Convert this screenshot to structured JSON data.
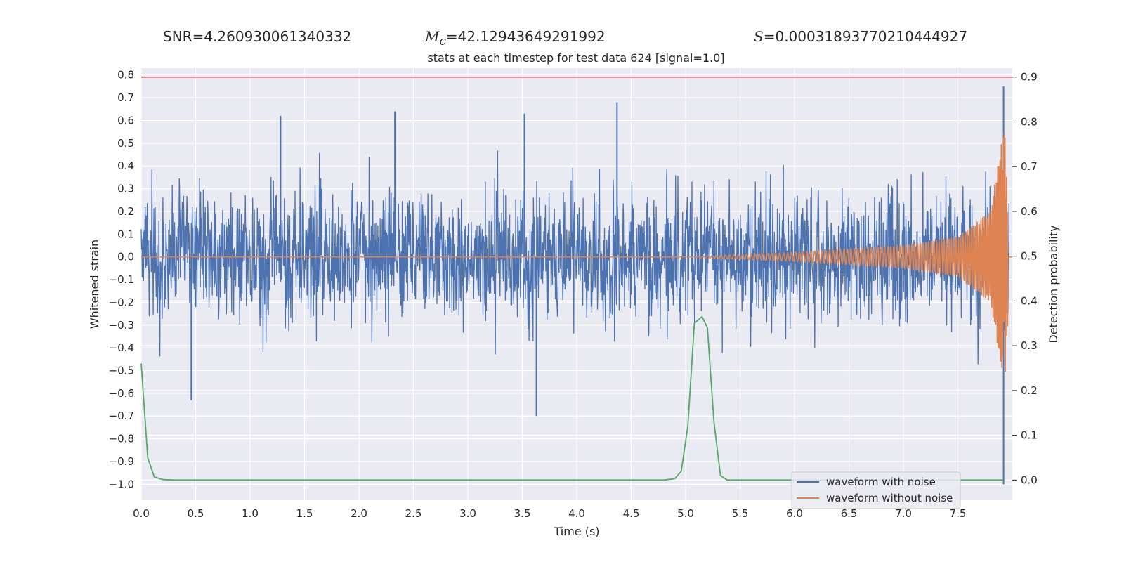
{
  "stats": {
    "snr_label": "SNR",
    "snr_value": "4.260930061340332",
    "mc_symbol": "M",
    "mc_subscript": "c",
    "mc_value": "42.12943649291992",
    "s_symbol": "S",
    "s_value": "0.00031893770210444927"
  },
  "chart_data": {
    "type": "line",
    "title": "stats at each timestep for test data 624 [signal=1.0]",
    "xlabel": "Time (s)",
    "ylabel": "Whitened strain",
    "y2label": "Detection probability",
    "xlim": [
      0.0,
      8.0
    ],
    "ylim": [
      -1.07,
      0.83
    ],
    "y2lim": [
      -0.045,
      0.92
    ],
    "xticks": [
      "0.0",
      "0.5",
      "1.0",
      "1.5",
      "2.0",
      "2.5",
      "3.0",
      "3.5",
      "4.0",
      "4.5",
      "5.0",
      "5.5",
      "6.0",
      "6.5",
      "7.0",
      "7.5"
    ],
    "yticks": [
      "0.8",
      "0.7",
      "0.6",
      "0.5",
      "0.4",
      "0.3",
      "0.2",
      "0.1",
      "0.0",
      "−0.1",
      "−0.2",
      "−0.3",
      "−0.4",
      "−0.5",
      "−0.6",
      "−0.7",
      "−0.8",
      "−0.9",
      "−1.0"
    ],
    "y2ticks": [
      "0.9",
      "0.8",
      "0.7",
      "0.6",
      "0.5",
      "0.4",
      "0.3",
      "0.2",
      "0.1",
      "0.0"
    ],
    "grid": true,
    "legend_position": "lower-right",
    "colors": {
      "noisy": "#4c72b0",
      "clean": "#dd8452",
      "probability": "#55a868",
      "threshold": "#c44e52",
      "background": "#eaeaf2",
      "grid": "#ffffff"
    },
    "threshold": 0.9,
    "series": [
      {
        "name": "waveform with noise",
        "description": "whitened noisy strain fluctuating roughly between -0.5 and 0.5 with spikes; notable extremes",
        "extremes": [
          [
            0.46,
            -0.63
          ],
          [
            1.28,
            0.62
          ],
          [
            2.33,
            0.64
          ],
          [
            3.52,
            0.63
          ],
          [
            3.63,
            -0.7
          ],
          [
            4.37,
            0.68
          ],
          [
            7.92,
            0.75
          ],
          [
            7.92,
            -1.0
          ]
        ]
      },
      {
        "name": "waveform without noise",
        "description": "chirp signal growing in amplitude toward merger",
        "points": [
          [
            0.0,
            0.0
          ],
          [
            5.0,
            0.0
          ],
          [
            6.0,
            0.02
          ],
          [
            7.0,
            0.05
          ],
          [
            7.5,
            0.09
          ],
          [
            7.8,
            0.2
          ],
          [
            7.9,
            0.5
          ],
          [
            7.93,
            0.55
          ],
          [
            7.95,
            -0.57
          ],
          [
            7.97,
            0.0
          ],
          [
            8.0,
            0.0
          ]
        ]
      },
      {
        "name": "",
        "axis": "secondary",
        "points": [
          [
            0.0,
            0.26
          ],
          [
            0.06,
            0.05
          ],
          [
            0.12,
            0.007
          ],
          [
            0.2,
            0.001
          ],
          [
            0.3,
            0.0
          ],
          [
            4.8,
            0.0
          ],
          [
            4.9,
            0.003
          ],
          [
            4.96,
            0.02
          ],
          [
            5.02,
            0.12
          ],
          [
            5.08,
            0.35
          ],
          [
            5.15,
            0.365
          ],
          [
            5.2,
            0.34
          ],
          [
            5.26,
            0.13
          ],
          [
            5.32,
            0.01
          ],
          [
            5.38,
            0.0
          ],
          [
            7.93,
            0.0
          ]
        ]
      }
    ]
  }
}
